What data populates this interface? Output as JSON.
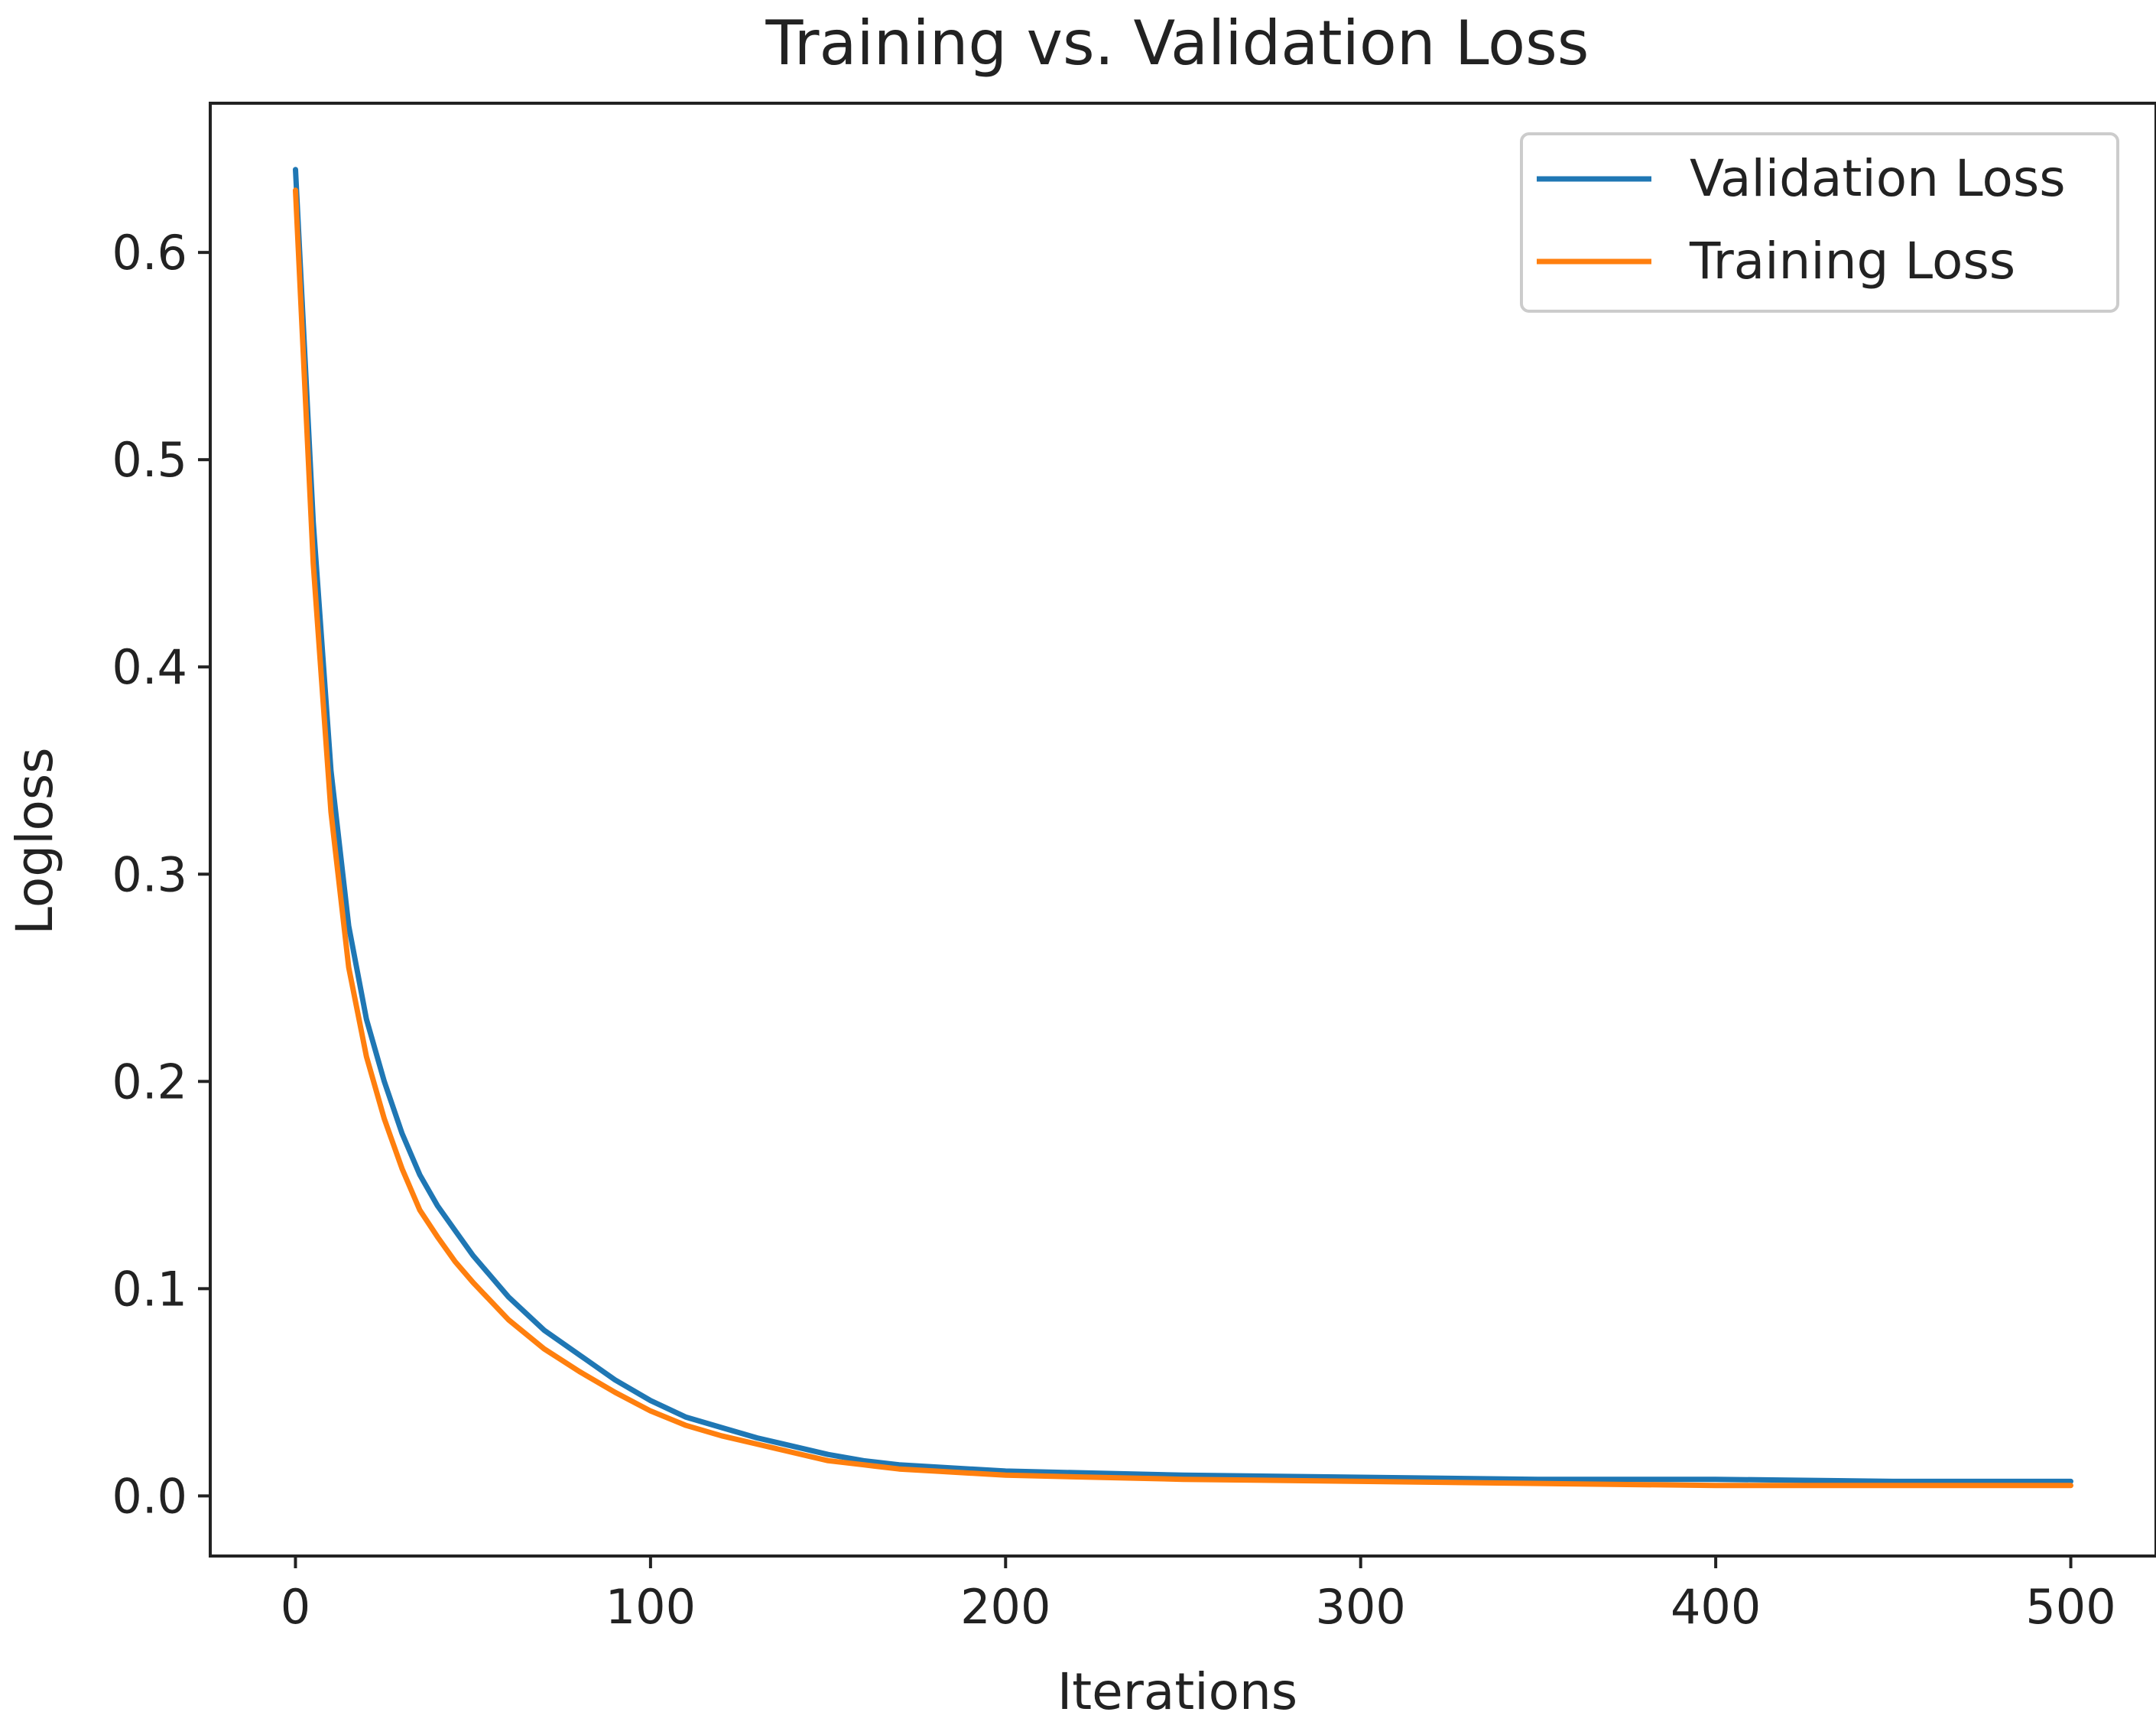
{
  "chart_data": {
    "type": "line",
    "title": "Training vs. Validation Loss",
    "xlabel": "Iterations",
    "ylabel": "Logloss",
    "xlim": [
      -24,
      524
    ],
    "ylim": [
      -0.029,
      0.672
    ],
    "xticks": [
      0,
      100,
      200,
      300,
      400,
      500
    ],
    "xtick_labels": [
      "0",
      "100",
      "200",
      "300",
      "400",
      "500"
    ],
    "yticks": [
      0.0,
      0.1,
      0.2,
      0.3,
      0.4,
      0.5,
      0.6
    ],
    "ytick_labels": [
      "0.0",
      "0.1",
      "0.2",
      "0.3",
      "0.4",
      "0.5",
      "0.6"
    ],
    "grid": false,
    "legend_position": "top-right",
    "series": [
      {
        "name": "Validation Loss",
        "color": "#1f77b4",
        "x": [
          0,
          5,
          10,
          15,
          20,
          25,
          30,
          35,
          40,
          45,
          50,
          60,
          70,
          80,
          90,
          100,
          110,
          120,
          130,
          140,
          150,
          160,
          170,
          180,
          200,
          250,
          300,
          350,
          400,
          450,
          500
        ],
        "y": [
          0.64,
          0.47,
          0.35,
          0.275,
          0.23,
          0.2,
          0.175,
          0.155,
          0.14,
          0.128,
          0.116,
          0.096,
          0.08,
          0.068,
          0.056,
          0.046,
          0.038,
          0.033,
          0.028,
          0.024,
          0.02,
          0.017,
          0.015,
          0.014,
          0.012,
          0.01,
          0.009,
          0.008,
          0.008,
          0.007,
          0.007
        ]
      },
      {
        "name": "Training Loss",
        "color": "#ff7f0e",
        "x": [
          0,
          5,
          10,
          15,
          20,
          25,
          30,
          35,
          40,
          45,
          50,
          60,
          70,
          80,
          90,
          100,
          110,
          120,
          130,
          140,
          150,
          160,
          170,
          180,
          200,
          250,
          300,
          350,
          400,
          450,
          500
        ],
        "y": [
          0.63,
          0.45,
          0.33,
          0.255,
          0.212,
          0.182,
          0.158,
          0.138,
          0.125,
          0.113,
          0.103,
          0.085,
          0.071,
          0.06,
          0.05,
          0.041,
          0.034,
          0.029,
          0.025,
          0.021,
          0.017,
          0.015,
          0.013,
          0.012,
          0.01,
          0.008,
          0.007,
          0.006,
          0.005,
          0.005,
          0.005
        ]
      }
    ]
  }
}
